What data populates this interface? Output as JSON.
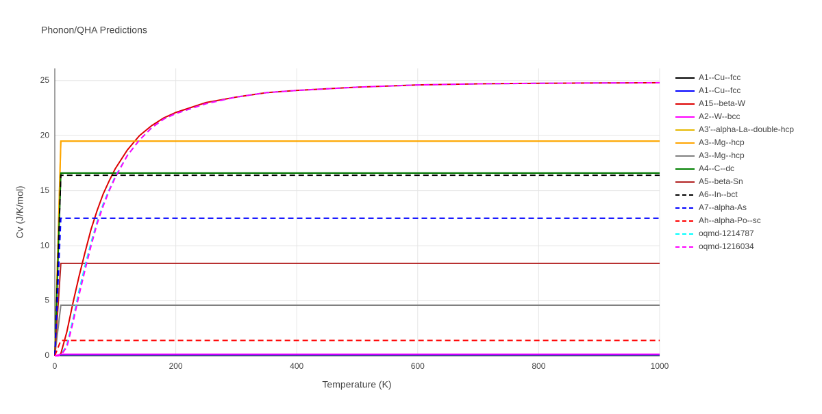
{
  "chart_data": {
    "type": "line",
    "title": "Phonon/QHA Predictions",
    "x_label": "Temperature (K)",
    "y_label": "Cv (J/K/mol)",
    "x": [
      0,
      5,
      10,
      20,
      30,
      40,
      50,
      60,
      70,
      80,
      90,
      100,
      120,
      140,
      160,
      180,
      200,
      250,
      300,
      350,
      400,
      500,
      600,
      700,
      800,
      900,
      1000
    ],
    "xlim": [
      0,
      1000
    ],
    "xticks": [
      0,
      200,
      400,
      600,
      800,
      1000
    ],
    "ylim": [
      0,
      26.1
    ],
    "yticks": [
      0,
      5,
      10,
      15,
      20,
      25
    ],
    "grid": true,
    "series": [
      {
        "name": "A1--Cu--fcc",
        "color": "#000000",
        "dash": false,
        "values": [
          0,
          8.3,
          16.6,
          16.6,
          16.6,
          16.6,
          16.6,
          16.6,
          16.6,
          16.6,
          16.6,
          16.6,
          16.6,
          16.6,
          16.6,
          16.6,
          16.6,
          16.6,
          16.6,
          16.6,
          16.6,
          16.6,
          16.6,
          16.6,
          16.6,
          16.6,
          16.6
        ]
      },
      {
        "name": "A1--Cu--fcc",
        "color": "#0000ff",
        "dash": false,
        "values": [
          0,
          0.05,
          0.1,
          0.1,
          0.1,
          0.1,
          0.1,
          0.1,
          0.1,
          0.1,
          0.1,
          0.1,
          0.1,
          0.1,
          0.1,
          0.1,
          0.1,
          0.1,
          0.1,
          0.1,
          0.1,
          0.1,
          0.1,
          0.1,
          0.1,
          0.1,
          0.1
        ]
      },
      {
        "name": "A15--beta-W",
        "color": "#dd0000",
        "dash": false,
        "values": [
          0,
          0.02,
          0.2,
          2.2,
          4.8,
          7.2,
          9.4,
          11.5,
          13.2,
          14.7,
          15.9,
          17,
          18.7,
          20,
          20.9,
          21.6,
          22.1,
          23,
          23.5,
          23.9,
          24.1,
          24.4,
          24.6,
          24.7,
          24.75,
          24.78,
          24.8
        ]
      },
      {
        "name": "A2--W--bcc",
        "color": "#ff00ff",
        "dash": false,
        "values": [
          0,
          0.07,
          0.15,
          0.15,
          0.15,
          0.15,
          0.15,
          0.15,
          0.15,
          0.15,
          0.15,
          0.15,
          0.15,
          0.15,
          0.15,
          0.15,
          0.15,
          0.15,
          0.15,
          0.15,
          0.15,
          0.15,
          0.15,
          0.15,
          0.15,
          0.15,
          0.15
        ]
      },
      {
        "name": "A3'--alpha-La--double-hcp",
        "color": "#e6b800",
        "dash": false,
        "values": [
          0,
          9.7,
          19.5,
          19.5,
          19.5,
          19.5,
          19.5,
          19.5,
          19.5,
          19.5,
          19.5,
          19.5,
          19.5,
          19.5,
          19.5,
          19.5,
          19.5,
          19.5,
          19.5,
          19.5,
          19.5,
          19.5,
          19.5,
          19.5,
          19.5,
          19.5,
          19.5
        ]
      },
      {
        "name": "A3--Mg--hcp",
        "color": "#ffa500",
        "dash": false,
        "values": [
          0,
          9.7,
          19.5,
          19.5,
          19.5,
          19.5,
          19.5,
          19.5,
          19.5,
          19.5,
          19.5,
          19.5,
          19.5,
          19.5,
          19.5,
          19.5,
          19.5,
          19.5,
          19.5,
          19.5,
          19.5,
          19.5,
          19.5,
          19.5,
          19.5,
          19.5,
          19.5
        ]
      },
      {
        "name": "A3--Mg--hcp",
        "color": "#808080",
        "dash": false,
        "values": [
          0,
          2.3,
          4.6,
          4.6,
          4.6,
          4.6,
          4.6,
          4.6,
          4.6,
          4.6,
          4.6,
          4.6,
          4.6,
          4.6,
          4.6,
          4.6,
          4.6,
          4.6,
          4.6,
          4.6,
          4.6,
          4.6,
          4.6,
          4.6,
          4.6,
          4.6,
          4.6
        ]
      },
      {
        "name": "A4--C--dc",
        "color": "#008000",
        "dash": false,
        "values": [
          0,
          8.3,
          16.6,
          16.6,
          16.6,
          16.6,
          16.6,
          16.6,
          16.6,
          16.6,
          16.6,
          16.6,
          16.6,
          16.6,
          16.6,
          16.6,
          16.6,
          16.6,
          16.6,
          16.6,
          16.6,
          16.6,
          16.6,
          16.6,
          16.6,
          16.6,
          16.6
        ]
      },
      {
        "name": "A5--beta-Sn",
        "color": "#b22222",
        "dash": false,
        "values": [
          0,
          4.2,
          8.4,
          8.4,
          8.4,
          8.4,
          8.4,
          8.4,
          8.4,
          8.4,
          8.4,
          8.4,
          8.4,
          8.4,
          8.4,
          8.4,
          8.4,
          8.4,
          8.4,
          8.4,
          8.4,
          8.4,
          8.4,
          8.4,
          8.4,
          8.4,
          8.4
        ]
      },
      {
        "name": "A6--In--bct",
        "color": "#000000",
        "dash": true,
        "values": [
          0,
          8.2,
          16.4,
          16.4,
          16.4,
          16.4,
          16.4,
          16.4,
          16.4,
          16.4,
          16.4,
          16.4,
          16.4,
          16.4,
          16.4,
          16.4,
          16.4,
          16.4,
          16.4,
          16.4,
          16.4,
          16.4,
          16.4,
          16.4,
          16.4,
          16.4,
          16.4
        ]
      },
      {
        "name": "A7--alpha-As",
        "color": "#0000ff",
        "dash": true,
        "values": [
          0,
          6.2,
          12.5,
          12.5,
          12.5,
          12.5,
          12.5,
          12.5,
          12.5,
          12.5,
          12.5,
          12.5,
          12.5,
          12.5,
          12.5,
          12.5,
          12.5,
          12.5,
          12.5,
          12.5,
          12.5,
          12.5,
          12.5,
          12.5,
          12.5,
          12.5,
          12.5
        ]
      },
      {
        "name": "Ah--alpha-Po--sc",
        "color": "#ff0000",
        "dash": true,
        "values": [
          0,
          0.7,
          1.4,
          1.4,
          1.4,
          1.4,
          1.4,
          1.4,
          1.4,
          1.4,
          1.4,
          1.4,
          1.4,
          1.4,
          1.4,
          1.4,
          1.4,
          1.4,
          1.4,
          1.4,
          1.4,
          1.4,
          1.4,
          1.4,
          1.4,
          1.4,
          1.4
        ]
      },
      {
        "name": "oqmd-1214787",
        "color": "#00ffff",
        "dash": true,
        "values": [
          0,
          0,
          0.05,
          1,
          3.3,
          5.9,
          8.2,
          10.3,
          12.2,
          13.8,
          15.1,
          16.3,
          18.2,
          19.6,
          20.7,
          21.5,
          22,
          22.9,
          23.5,
          23.9,
          24.1,
          24.4,
          24.6,
          24.7,
          24.75,
          24.78,
          24.8
        ]
      },
      {
        "name": "oqmd-1216034",
        "color": "#ff00ff",
        "dash": true,
        "values": [
          0,
          0,
          0.05,
          0.8,
          3,
          5.5,
          7.8,
          10,
          12,
          13.6,
          15,
          16.2,
          18.2,
          19.6,
          20.7,
          21.5,
          22,
          22.9,
          23.5,
          23.9,
          24.1,
          24.4,
          24.6,
          24.7,
          24.75,
          24.78,
          24.8
        ]
      }
    ]
  }
}
